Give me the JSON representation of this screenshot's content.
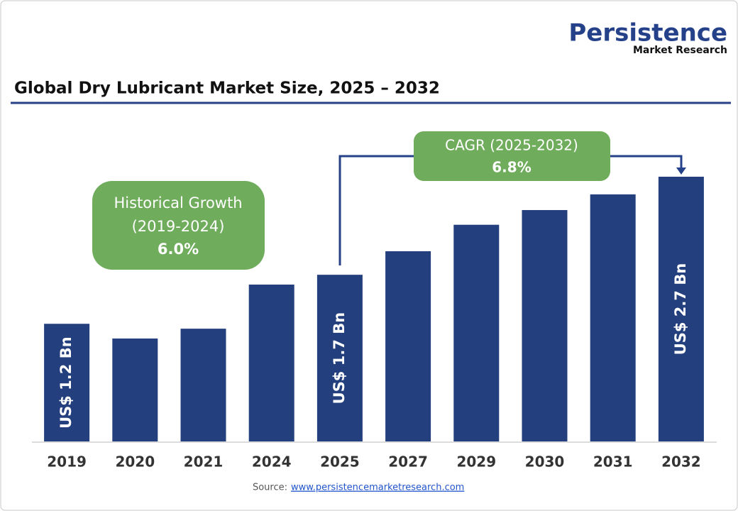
{
  "logo": {
    "name": "Persistence",
    "tagline": "Market Research"
  },
  "chart_data": {
    "type": "bar",
    "title": "Global Dry Lubricant Market Size, 2025 – 2032",
    "categories": [
      "2019",
      "2020",
      "2021",
      "2024",
      "2025",
      "2027",
      "2029",
      "2030",
      "2031",
      "2032"
    ],
    "values": [
      1.2,
      1.05,
      1.15,
      1.6,
      1.7,
      1.94,
      2.21,
      2.36,
      2.52,
      2.7
    ],
    "value_labels": [
      "US$ 1.2 Bn",
      null,
      null,
      null,
      "US$ 1.7 Bn",
      null,
      null,
      null,
      null,
      "US$ 2.7 Bn"
    ],
    "color": "#233f7e",
    "annotations": {
      "historical": {
        "lines": [
          "Historical Growth",
          "(2019-2024)",
          "6.0%"
        ]
      },
      "cagr": {
        "lines": [
          "CAGR (2025-2032)",
          "6.8%"
        ]
      }
    },
    "source": {
      "label": "Source:",
      "url": "www.persistencemarketresearch.com"
    }
  }
}
